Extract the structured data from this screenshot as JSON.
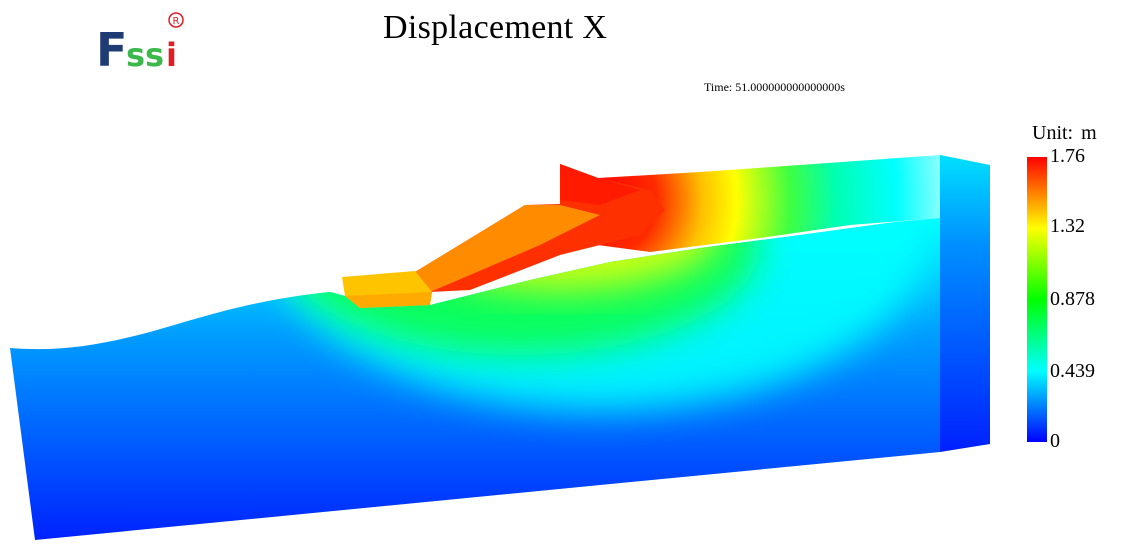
{
  "logo": {
    "text_main": "Fssi",
    "text_mark": "®"
  },
  "title": "Displacement X",
  "time_label": "Time: 51.000000000000000s",
  "legend": {
    "unit_label": "Unit:",
    "unit_value": "m",
    "max": 1.76,
    "ticks": [
      {
        "label": "1.76",
        "value": 1.76
      },
      {
        "label": "1.32",
        "value": 1.32
      },
      {
        "label": "0.878",
        "value": 0.878
      },
      {
        "label": "0.439",
        "value": 0.439
      },
      {
        "label": "0",
        "value": 0
      }
    ],
    "colors": [
      "#0000ff",
      "#00ffff",
      "#00ff00",
      "#ffff00",
      "#ff0000"
    ]
  }
}
